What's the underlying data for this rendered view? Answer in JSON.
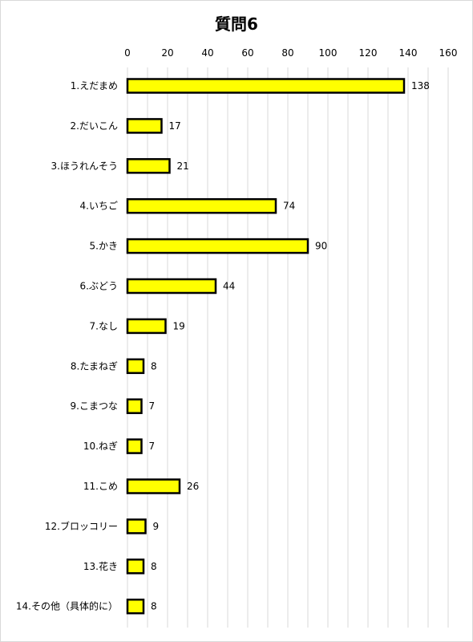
{
  "chart_data": {
    "type": "bar",
    "orientation": "horizontal",
    "title": "質問6",
    "xlabel": "",
    "ylabel": "",
    "xlim": [
      0,
      160
    ],
    "x_ticks": [
      0,
      20,
      40,
      60,
      80,
      100,
      120,
      140,
      160
    ],
    "x_axis_position": "top",
    "grid": true,
    "categories": [
      "1.えだまめ",
      "2.だいこん",
      "3.ほうれんそう",
      "4.いちご",
      "5.かき",
      "6.ぶどう",
      "7.なし",
      "8.たまねぎ",
      "9.こまつな",
      "10.ねぎ",
      "11.こめ",
      "12.ブロッコリー",
      "13.花き",
      "14.その他（具体的に）"
    ],
    "values": [
      138,
      17,
      21,
      74,
      90,
      44,
      19,
      8,
      7,
      7,
      26,
      9,
      8,
      8
    ],
    "colors": {
      "bar_fill": "#ffff00",
      "bar_stroke": "#000000",
      "grid": "#d9d9d9"
    }
  }
}
